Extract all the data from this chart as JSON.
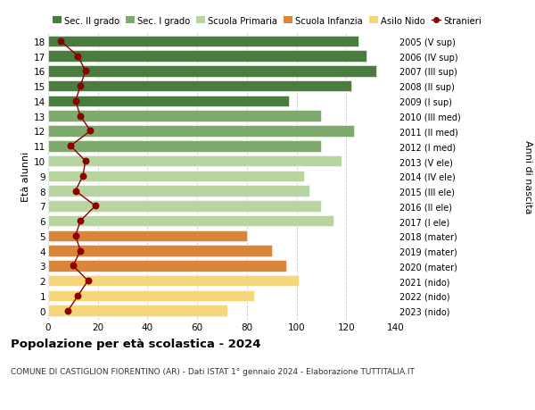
{
  "ages": [
    18,
    17,
    16,
    15,
    14,
    13,
    12,
    11,
    10,
    9,
    8,
    7,
    6,
    5,
    4,
    3,
    2,
    1,
    0
  ],
  "right_labels": [
    "2005 (V sup)",
    "2006 (IV sup)",
    "2007 (III sup)",
    "2008 (II sup)",
    "2009 (I sup)",
    "2010 (III med)",
    "2011 (II med)",
    "2012 (I med)",
    "2013 (V ele)",
    "2014 (IV ele)",
    "2015 (III ele)",
    "2016 (II ele)",
    "2017 (I ele)",
    "2018 (mater)",
    "2019 (mater)",
    "2020 (mater)",
    "2021 (nido)",
    "2022 (nido)",
    "2023 (nido)"
  ],
  "bar_values": [
    125,
    128,
    132,
    122,
    97,
    110,
    123,
    110,
    118,
    103,
    105,
    110,
    115,
    80,
    90,
    96,
    101,
    83,
    72
  ],
  "bar_colors": [
    "#4a7c3f",
    "#4a7c3f",
    "#4a7c3f",
    "#4a7c3f",
    "#4a7c3f",
    "#7faa6e",
    "#7faa6e",
    "#7faa6e",
    "#b8d4a0",
    "#b8d4a0",
    "#b8d4a0",
    "#b8d4a0",
    "#b8d4a0",
    "#d9863a",
    "#d9863a",
    "#d9863a",
    "#f5d77a",
    "#f5d77a",
    "#f5d77a"
  ],
  "stranieri_values": [
    5,
    12,
    15,
    13,
    11,
    13,
    17,
    9,
    15,
    14,
    11,
    19,
    13,
    11,
    13,
    10,
    16,
    12,
    8
  ],
  "legend_labels": [
    "Sec. II grado",
    "Sec. I grado",
    "Scuola Primaria",
    "Scuola Infanzia",
    "Asilo Nido",
    "Stranieri"
  ],
  "legend_colors": [
    "#4a7c3f",
    "#7faa6e",
    "#b8d4a0",
    "#d9863a",
    "#f5d77a",
    "#8b0000"
  ],
  "title": "Popolazione per età scolastica - 2024",
  "subtitle": "COMUNE DI CASTIGLION FIORENTINO (AR) - Dati ISTAT 1° gennaio 2024 - Elaborazione TUTTITALIA.IT",
  "ylabel": "Età alunni",
  "right_ylabel": "Anni di nascita",
  "xlim": [
    0,
    140
  ],
  "xticks": [
    0,
    20,
    40,
    60,
    80,
    100,
    120,
    140
  ],
  "background_color": "#ffffff",
  "grid_color": "#cccccc",
  "bar_height": 0.75
}
